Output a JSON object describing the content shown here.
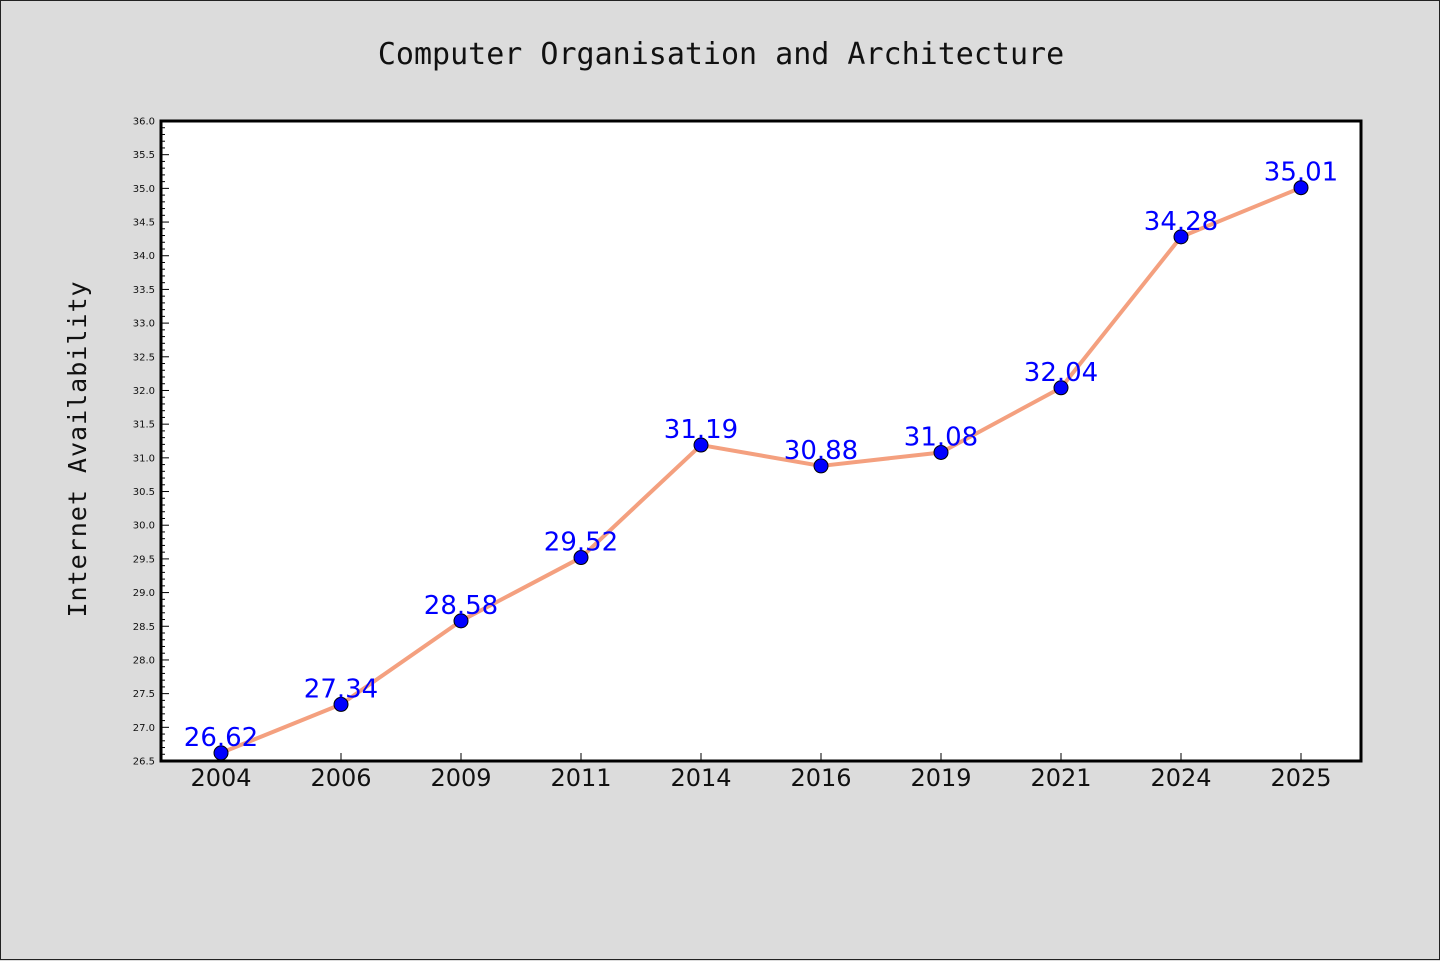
{
  "chart_data": {
    "type": "line",
    "title": "Computer Organisation and Architecture",
    "xlabel": "",
    "ylabel": "Internet Availability",
    "categories": [
      "2004",
      "2006",
      "2009",
      "2011",
      "2014",
      "2016",
      "2019",
      "2021",
      "2024",
      "2025"
    ],
    "series": [
      {
        "values": [
          26.62,
          27.34,
          28.58,
          29.52,
          31.19,
          30.88,
          31.08,
          32.04,
          34.28,
          35.01
        ],
        "labels": [
          "26.62",
          "27.34",
          "28.58",
          "29.52",
          "31.19",
          "30.88",
          "31.08",
          "32.04",
          "34.28",
          "35.01"
        ],
        "line_color": "#f4a07f",
        "marker_color": "#0000ff"
      }
    ],
    "ylim": [
      26.5,
      36.0
    ],
    "yticks": [
      "26.5",
      "27.0",
      "27.5",
      "28.0",
      "28.5",
      "29.0",
      "29.5",
      "30.0",
      "30.5",
      "31.0",
      "31.5",
      "32.0",
      "32.5",
      "33.0",
      "33.5",
      "34.0",
      "34.5",
      "35.0",
      "35.5",
      "36.0"
    ],
    "grid": false,
    "legend": "none",
    "background": "#dcdcdc",
    "plot_background": "#ffffff"
  }
}
